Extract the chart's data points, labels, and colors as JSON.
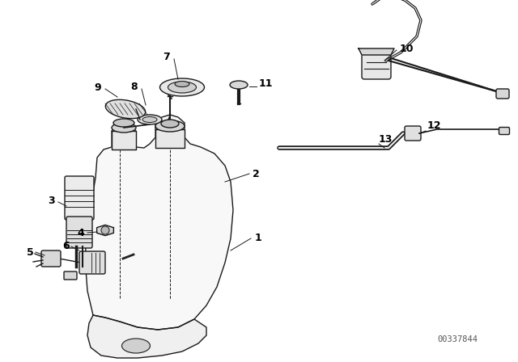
{
  "bg_color": "#ffffff",
  "line_color": "#1a1a1a",
  "watermark": "00337844",
  "label_fontsize": 9,
  "watermark_fontsize": 7.5,
  "figsize": [
    6.4,
    4.48
  ],
  "dpi": 100
}
